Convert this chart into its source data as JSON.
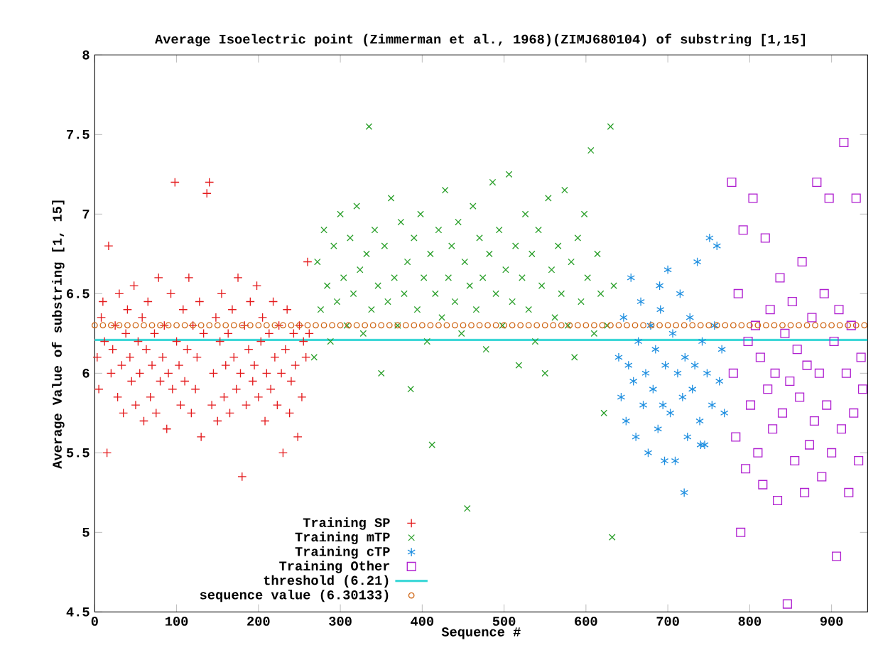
{
  "chart_data": {
    "type": "scatter",
    "title": "Average Isoelectric point (Zimmerman et al., 1968)(ZIMJ680104) of substring [1,15]",
    "xlabel": "Sequence #",
    "ylabel": "Average Value of substring [1, 15]",
    "xlim": [
      0,
      944
    ],
    "ylim": [
      4.5,
      8
    ],
    "xticks": [
      0,
      100,
      200,
      300,
      400,
      500,
      600,
      700,
      800,
      900
    ],
    "yticks": [
      4.5,
      5,
      5.5,
      6,
      6.5,
      7,
      7.5,
      8
    ],
    "grid": false,
    "legend": "bottom left",
    "series": [
      {
        "name": "Training SP",
        "color": "#e41a1c",
        "type": "scatter",
        "marker": "plus",
        "x": [
          3,
          5,
          8,
          10,
          12,
          15,
          17,
          20,
          22,
          25,
          28,
          30,
          33,
          35,
          38,
          40,
          43,
          45,
          48,
          50,
          53,
          55,
          58,
          60,
          63,
          65,
          68,
          70,
          73,
          75,
          78,
          80,
          83,
          85,
          88,
          90,
          93,
          95,
          98,
          100,
          103,
          105,
          108,
          110,
          113,
          115,
          118,
          120,
          123,
          125,
          128,
          130,
          133,
          137,
          140,
          143,
          145,
          148,
          150,
          153,
          155,
          158,
          160,
          163,
          165,
          168,
          170,
          173,
          175,
          178,
          180,
          183,
          185,
          188,
          190,
          193,
          195,
          198,
          200,
          203,
          205,
          208,
          210,
          213,
          215,
          218,
          220,
          223,
          225,
          228,
          230,
          233,
          235,
          238,
          240,
          243,
          245,
          248,
          250,
          253,
          255,
          258,
          260,
          262
        ],
        "values": [
          6.1,
          5.9,
          6.35,
          6.45,
          6.2,
          5.5,
          6.8,
          6.0,
          6.15,
          6.3,
          5.85,
          6.5,
          6.05,
          5.75,
          6.25,
          6.4,
          6.1,
          5.95,
          6.55,
          5.8,
          6.2,
          6.0,
          6.35,
          5.7,
          6.15,
          6.45,
          5.85,
          6.05,
          6.25,
          5.75,
          6.6,
          5.95,
          6.1,
          6.3,
          5.65,
          6.0,
          6.5,
          5.9,
          7.2,
          6.2,
          6.05,
          5.8,
          6.4,
          5.95,
          6.15,
          6.6,
          5.75,
          6.3,
          5.9,
          6.1,
          6.45,
          5.6,
          6.25,
          7.13,
          7.2,
          5.8,
          6.0,
          6.35,
          5.7,
          6.2,
          6.5,
          5.85,
          6.05,
          6.25,
          5.75,
          6.4,
          6.1,
          5.9,
          6.6,
          6.0,
          5.35,
          6.3,
          5.8,
          6.15,
          6.45,
          5.95,
          6.05,
          6.55,
          5.85,
          6.2,
          6.35,
          5.7,
          6.0,
          6.25,
          5.9,
          6.45,
          6.1,
          5.8,
          6.3,
          6.0,
          5.5,
          6.15,
          6.4,
          5.75,
          5.95,
          6.25,
          6.05,
          5.6,
          6.3,
          5.85,
          6.2,
          6.1,
          6.7,
          6.25
        ]
      },
      {
        "name": "Training mTP",
        "color": "#2ca02c",
        "type": "scatter",
        "marker": "cross",
        "x": [
          268,
          272,
          276,
          280,
          284,
          288,
          292,
          296,
          300,
          304,
          308,
          312,
          316,
          320,
          324,
          328,
          332,
          335,
          338,
          342,
          346,
          350,
          354,
          358,
          362,
          366,
          370,
          374,
          378,
          382,
          386,
          390,
          394,
          398,
          402,
          406,
          410,
          412,
          416,
          420,
          424,
          428,
          432,
          436,
          440,
          444,
          448,
          452,
          455,
          458,
          462,
          466,
          470,
          474,
          478,
          482,
          486,
          490,
          494,
          498,
          502,
          506,
          510,
          514,
          518,
          522,
          526,
          530,
          534,
          538,
          542,
          546,
          550,
          554,
          558,
          562,
          566,
          570,
          574,
          578,
          582,
          586,
          590,
          594,
          598,
          602,
          606,
          610,
          614,
          618,
          622,
          626,
          630,
          632,
          634
        ],
        "values": [
          6.1,
          6.7,
          6.4,
          6.9,
          6.55,
          6.2,
          6.8,
          6.45,
          7.0,
          6.6,
          6.3,
          6.85,
          6.5,
          7.05,
          6.65,
          6.25,
          6.75,
          7.55,
          6.4,
          6.9,
          6.55,
          6.0,
          6.8,
          6.45,
          7.1,
          6.6,
          6.3,
          6.95,
          6.5,
          6.7,
          5.9,
          6.85,
          6.4,
          7.0,
          6.6,
          6.2,
          6.75,
          5.55,
          6.5,
          6.9,
          6.35,
          7.15,
          6.6,
          6.8,
          6.45,
          6.95,
          6.25,
          6.7,
          5.15,
          6.55,
          7.05,
          6.4,
          6.85,
          6.6,
          6.15,
          6.75,
          7.2,
          6.5,
          6.9,
          6.3,
          6.65,
          7.25,
          6.45,
          6.8,
          6.05,
          6.6,
          7.0,
          6.4,
          6.75,
          6.2,
          6.9,
          6.55,
          6.0,
          7.1,
          6.65,
          6.35,
          6.8,
          6.5,
          7.15,
          6.3,
          6.7,
          6.1,
          6.85,
          6.45,
          7.0,
          6.6,
          7.4,
          6.25,
          6.75,
          6.5,
          5.75,
          6.3,
          7.55,
          4.97,
          6.55
        ]
      },
      {
        "name": "Training cTP",
        "color": "#1f8fe0",
        "type": "scatter",
        "x": [
          640,
          643,
          646,
          649,
          652,
          655,
          658,
          661,
          664,
          667,
          670,
          673,
          676,
          679,
          682,
          685,
          688,
          691,
          694,
          697,
          700,
          703,
          706,
          709,
          712,
          715,
          718,
          721,
          724,
          727,
          730,
          733,
          736,
          739,
          742,
          745,
          748,
          751,
          754,
          757,
          760,
          763,
          766,
          769,
          720,
          696,
          740,
          690
        ],
        "values": [
          6.1,
          5.85,
          6.35,
          5.7,
          6.05,
          6.6,
          5.95,
          5.6,
          6.2,
          6.45,
          5.8,
          6.0,
          5.5,
          6.3,
          5.9,
          6.15,
          5.65,
          6.4,
          5.8,
          6.05,
          6.65,
          5.75,
          6.25,
          5.45,
          6.0,
          6.5,
          5.85,
          6.1,
          5.6,
          6.35,
          5.9,
          6.05,
          6.7,
          5.7,
          6.2,
          5.55,
          6.0,
          6.85,
          5.8,
          6.3,
          6.8,
          5.95,
          6.15,
          5.75,
          5.25,
          5.45,
          5.55,
          6.55
        ]
      },
      {
        "name": "Training Other",
        "color": "#b020d0",
        "type": "scatter",
        "marker": "square",
        "x": [
          778,
          780,
          783,
          786,
          789,
          792,
          795,
          798,
          801,
          804,
          807,
          810,
          813,
          816,
          819,
          822,
          825,
          828,
          831,
          834,
          837,
          840,
          843,
          846,
          849,
          852,
          855,
          858,
          861,
          864,
          867,
          870,
          873,
          876,
          879,
          882,
          885,
          888,
          891,
          894,
          897,
          900,
          903,
          906,
          909,
          912,
          915,
          918,
          921,
          924,
          927,
          930,
          933,
          936,
          938
        ],
        "values": [
          7.2,
          6.0,
          5.6,
          6.5,
          5.0,
          6.9,
          5.4,
          6.2,
          5.8,
          7.1,
          6.3,
          5.5,
          6.1,
          5.3,
          6.85,
          5.9,
          6.4,
          5.65,
          6.0,
          5.2,
          6.6,
          5.75,
          6.25,
          4.55,
          5.95,
          6.45,
          5.45,
          6.15,
          5.85,
          6.7,
          5.25,
          6.05,
          5.55,
          6.35,
          5.7,
          7.2,
          6.0,
          5.35,
          6.5,
          5.8,
          7.1,
          5.5,
          6.2,
          4.85,
          6.4,
          5.65,
          7.45,
          6.0,
          5.25,
          6.3,
          5.75,
          7.1,
          5.45,
          6.1,
          5.9
        ]
      },
      {
        "name": "threshold (6.21)",
        "color": "#40d8d8",
        "type": "line",
        "marker": "none",
        "x": [
          0,
          944
        ],
        "values": [
          6.21,
          6.21
        ]
      },
      {
        "name": "sequence value (6.30133)",
        "color": "#d06818",
        "type": "scatter",
        "marker": "circle",
        "x": [
          0,
          10,
          20,
          30,
          40,
          50,
          60,
          70,
          80,
          90,
          100,
          110,
          120,
          130,
          140,
          150,
          160,
          170,
          180,
          190,
          200,
          210,
          220,
          230,
          240,
          250,
          260,
          270,
          280,
          290,
          300,
          310,
          320,
          330,
          340,
          350,
          360,
          370,
          380,
          390,
          400,
          410,
          420,
          430,
          440,
          450,
          460,
          470,
          480,
          490,
          500,
          510,
          520,
          530,
          540,
          550,
          560,
          570,
          580,
          590,
          600,
          610,
          620,
          630,
          640,
          650,
          660,
          670,
          680,
          690,
          700,
          710,
          720,
          730,
          740,
          750,
          760,
          770,
          780,
          790,
          800,
          810,
          820,
          830,
          840,
          850,
          860,
          870,
          880,
          890,
          900,
          910,
          920,
          930,
          940
        ],
        "values": [
          6.30133,
          6.30133,
          6.30133,
          6.30133,
          6.30133,
          6.30133,
          6.30133,
          6.30133,
          6.30133,
          6.30133,
          6.30133,
          6.30133,
          6.30133,
          6.30133,
          6.30133,
          6.30133,
          6.30133,
          6.30133,
          6.30133,
          6.30133,
          6.30133,
          6.30133,
          6.30133,
          6.30133,
          6.30133,
          6.30133,
          6.30133,
          6.30133,
          6.30133,
          6.30133,
          6.30133,
          6.30133,
          6.30133,
          6.30133,
          6.30133,
          6.30133,
          6.30133,
          6.30133,
          6.30133,
          6.30133,
          6.30133,
          6.30133,
          6.30133,
          6.30133,
          6.30133,
          6.30133,
          6.30133,
          6.30133,
          6.30133,
          6.30133,
          6.30133,
          6.30133,
          6.30133,
          6.30133,
          6.30133,
          6.30133,
          6.30133,
          6.30133,
          6.30133,
          6.30133,
          6.30133,
          6.30133,
          6.30133,
          6.30133,
          6.30133,
          6.30133,
          6.30133,
          6.30133,
          6.30133,
          6.30133,
          6.30133,
          6.30133,
          6.30133,
          6.30133,
          6.30133,
          6.30133,
          6.30133,
          6.30133,
          6.30133,
          6.30133,
          6.30133,
          6.30133,
          6.30133,
          6.30133,
          6.30133,
          6.30133,
          6.30133,
          6.30133,
          6.30133,
          6.30133,
          6.30133,
          6.30133,
          6.30133,
          6.30133,
          6.30133
        ]
      }
    ]
  }
}
